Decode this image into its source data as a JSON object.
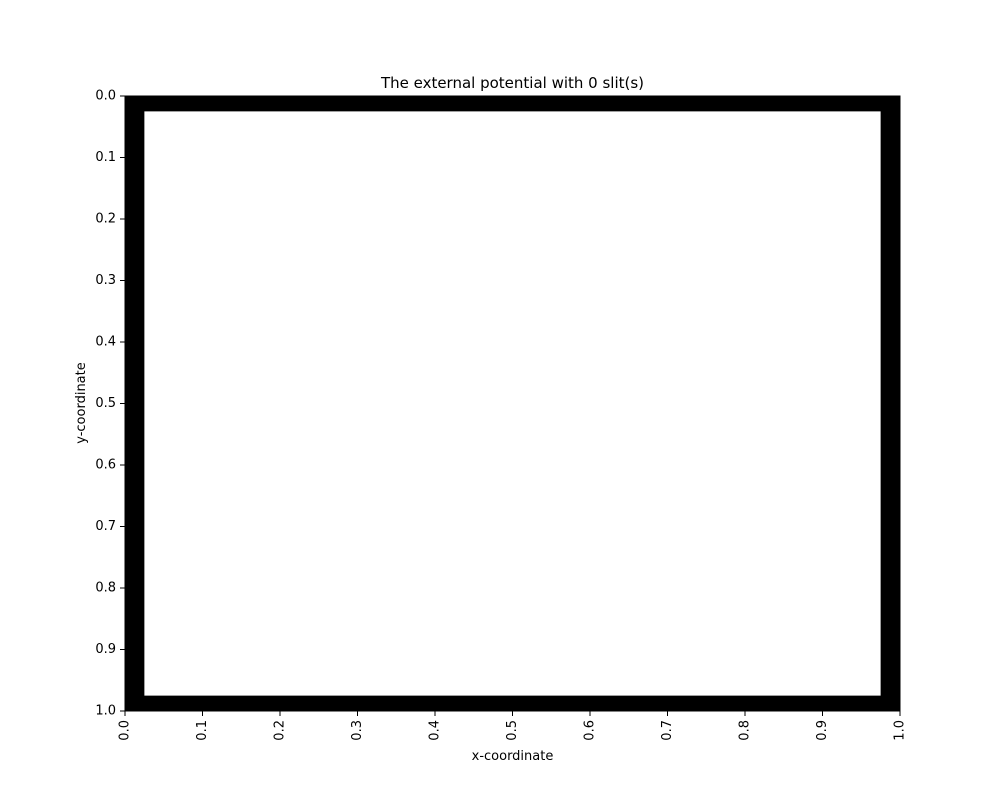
{
  "chart_data": {
    "type": "heatmap",
    "title": "The external potential with 0 slit(s)",
    "xlabel": "x-coordinate",
    "ylabel": "y-coordinate",
    "xlim": [
      0.0,
      1.0
    ],
    "ylim": [
      1.0,
      0.0
    ],
    "y_inverted": true,
    "x_ticks": [
      "0.0",
      "0.1",
      "0.2",
      "0.3",
      "0.4",
      "0.5",
      "0.6",
      "0.7",
      "0.8",
      "0.9",
      "1.0"
    ],
    "y_ticks": [
      "0.0",
      "0.1",
      "0.2",
      "0.3",
      "0.4",
      "0.5",
      "0.6",
      "0.7",
      "0.8",
      "0.9",
      "1.0"
    ],
    "x_tick_rotation": "vertical",
    "wall_thickness": 0.025,
    "wall_color": "#000000",
    "interior_color": "#ffffff",
    "grid": false,
    "legend": "none"
  }
}
